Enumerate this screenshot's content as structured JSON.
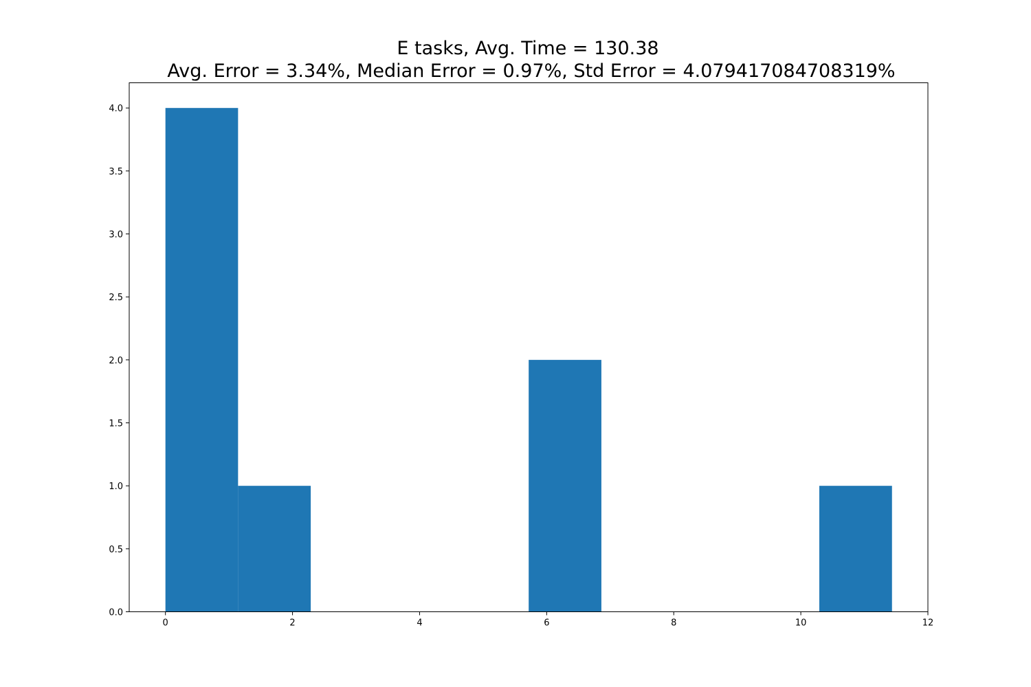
{
  "chart_data": {
    "type": "bar",
    "title_line1": "E tasks, Avg. Time = 130.38",
    "title_line2": "Avg. Error = 3.34%, Median Error = 0.97%, Std Error = 4.079417084708319%",
    "xlabel": "",
    "ylabel": "",
    "xlim": [
      -0.57,
      12.0
    ],
    "ylim": [
      0,
      4.2
    ],
    "x_ticks": [
      0,
      2,
      4,
      6,
      8,
      10,
      12
    ],
    "y_ticks": [
      0.0,
      0.5,
      1.0,
      1.5,
      2.0,
      2.5,
      3.0,
      3.5,
      4.0
    ],
    "bins": [
      {
        "start": 0.0,
        "end": 1.143,
        "count": 4
      },
      {
        "start": 1.143,
        "end": 2.287,
        "count": 1
      },
      {
        "start": 2.287,
        "end": 3.43,
        "count": 0
      },
      {
        "start": 3.43,
        "end": 4.574,
        "count": 0
      },
      {
        "start": 4.574,
        "end": 5.717,
        "count": 0
      },
      {
        "start": 5.717,
        "end": 6.861,
        "count": 2
      },
      {
        "start": 6.861,
        "end": 8.004,
        "count": 0
      },
      {
        "start": 8.004,
        "end": 9.148,
        "count": 0
      },
      {
        "start": 9.148,
        "end": 10.291,
        "count": 0
      },
      {
        "start": 10.291,
        "end": 11.435,
        "count": 1
      }
    ],
    "bar_color": "#1f77b4",
    "grid": false,
    "legend": "none"
  }
}
